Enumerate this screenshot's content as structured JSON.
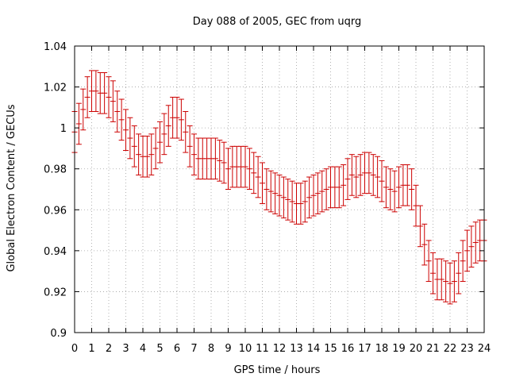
{
  "chart_data": {
    "type": "errorbar",
    "title": "Day 088 of 2005, GEC from uqrg",
    "xlabel": "GPS time / hours",
    "ylabel": "Global Electron Content / GECUs",
    "xlim": [
      0,
      24
    ],
    "ylim": [
      0.9,
      1.04
    ],
    "x_ticks": [
      0,
      1,
      2,
      3,
      4,
      5,
      6,
      7,
      8,
      9,
      10,
      11,
      12,
      13,
      14,
      15,
      16,
      17,
      18,
      19,
      20,
      21,
      22,
      23,
      24
    ],
    "y_ticks": [
      0.9,
      0.92,
      0.94,
      0.96,
      0.98,
      1,
      1.02,
      1.04
    ],
    "x_tick_labels": [
      "0",
      "1",
      "2",
      "3",
      "4",
      "5",
      "6",
      "7",
      "8",
      "9",
      "10",
      "11",
      "12",
      "13",
      "14",
      "15",
      "16",
      "17",
      "18",
      "19",
      "20",
      "21",
      "22",
      "23",
      "24"
    ],
    "y_tick_labels": [
      "0.9",
      "0.92",
      "0.94",
      "0.96",
      "0.98",
      "1",
      "1.02",
      "1.04"
    ],
    "grid": true,
    "series_color": "#cc0000",
    "error": 0.01,
    "x": [
      0,
      0.25,
      0.5,
      0.75,
      1,
      1.25,
      1.5,
      1.75,
      2,
      2.25,
      2.5,
      2.75,
      3,
      3.25,
      3.5,
      3.75,
      4,
      4.25,
      4.5,
      4.75,
      5,
      5.25,
      5.5,
      5.75,
      6,
      6.25,
      6.5,
      6.75,
      7,
      7.25,
      7.5,
      7.75,
      8,
      8.25,
      8.5,
      8.75,
      9,
      9.25,
      9.5,
      9.75,
      10,
      10.25,
      10.5,
      10.75,
      11,
      11.25,
      11.5,
      11.75,
      12,
      12.25,
      12.5,
      12.75,
      13,
      13.25,
      13.5,
      13.75,
      14,
      14.25,
      14.5,
      14.75,
      15,
      15.25,
      15.5,
      15.75,
      16,
      16.25,
      16.5,
      16.75,
      17,
      17.25,
      17.5,
      17.75,
      18,
      18.25,
      18.5,
      18.75,
      19,
      19.25,
      19.5,
      19.75,
      20,
      20.25,
      20.5,
      20.75,
      21,
      21.25,
      21.5,
      21.75,
      22,
      22.25,
      22.5,
      22.75,
      23,
      23.25,
      23.5,
      23.75,
      24
    ],
    "y": [
      0.998,
      1.002,
      1.009,
      1.015,
      1.018,
      1.018,
      1.017,
      1.017,
      1.015,
      1.013,
      1.008,
      1.004,
      0.999,
      0.995,
      0.991,
      0.987,
      0.986,
      0.986,
      0.987,
      0.99,
      0.993,
      0.997,
      1.001,
      1.005,
      1.005,
      1.004,
      0.998,
      0.991,
      0.987,
      0.985,
      0.985,
      0.985,
      0.985,
      0.985,
      0.984,
      0.983,
      0.98,
      0.981,
      0.981,
      0.981,
      0.981,
      0.98,
      0.978,
      0.976,
      0.973,
      0.97,
      0.969,
      0.968,
      0.967,
      0.966,
      0.965,
      0.964,
      0.963,
      0.963,
      0.964,
      0.966,
      0.967,
      0.968,
      0.969,
      0.97,
      0.971,
      0.971,
      0.971,
      0.972,
      0.975,
      0.977,
      0.976,
      0.977,
      0.978,
      0.978,
      0.977,
      0.976,
      0.974,
      0.971,
      0.97,
      0.969,
      0.971,
      0.972,
      0.972,
      0.97,
      0.962,
      0.952,
      0.943,
      0.935,
      0.929,
      0.926,
      0.926,
      0.925,
      0.924,
      0.925,
      0.929,
      0.935,
      0.94,
      0.942,
      0.944,
      0.945,
      0.945
    ]
  }
}
